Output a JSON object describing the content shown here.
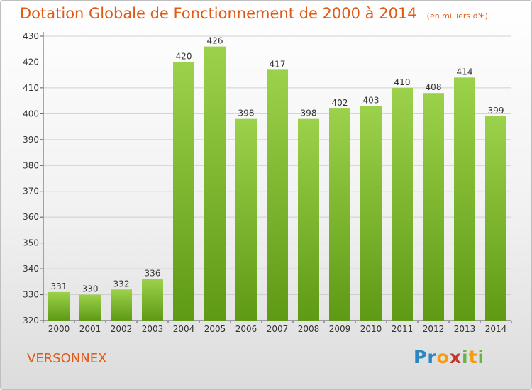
{
  "header": {
    "title": "Dotation Globale de Fonctionnement de 2000 à 2014",
    "unit": "(en milliers d'€)"
  },
  "commune": "VERSONNEX",
  "logo": {
    "letters": [
      {
        "ch": "P",
        "color": "#2e86c1"
      },
      {
        "ch": "r",
        "color": "#2e86c1"
      },
      {
        "ch": "o",
        "color": "#f39c12"
      },
      {
        "ch": "x",
        "color": "#c0392b"
      },
      {
        "ch": "i",
        "color": "#6ab04c"
      },
      {
        "ch": "t",
        "color": "#f39c12"
      },
      {
        "ch": "i",
        "color": "#6ab04c"
      }
    ]
  },
  "colors": {
    "bar_light": "#9cd14b",
    "bar_dark": "#5f9a14",
    "title": "#e05a16",
    "grid": "#cfcfcf"
  },
  "chart_data": {
    "type": "bar",
    "categories": [
      "2000",
      "2001",
      "2002",
      "2003",
      "2004",
      "2005",
      "2006",
      "2007",
      "2008",
      "2009",
      "2010",
      "2011",
      "2012",
      "2013",
      "2014"
    ],
    "values": [
      331,
      330,
      332,
      336,
      420,
      426,
      398,
      417,
      398,
      402,
      403,
      410,
      408,
      414,
      399
    ],
    "ylim": [
      320,
      430
    ],
    "yticks": [
      320,
      330,
      340,
      350,
      360,
      370,
      380,
      390,
      400,
      410,
      420,
      430
    ],
    "title": "Dotation Globale de Fonctionnement de 2000 à 2014",
    "ylabel": "(en milliers d'€)",
    "grid": true
  }
}
